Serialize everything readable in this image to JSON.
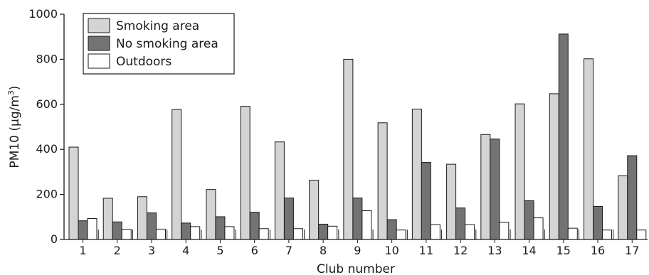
{
  "chart_data": {
    "type": "bar",
    "title": "",
    "xlabel": "Club number",
    "ylabel": "PM10 (µg/m",
    "ylabel_superscript": "3",
    "ylabel_suffix": ")",
    "ylim": [
      0,
      1000
    ],
    "yticks": [
      0,
      200,
      400,
      600,
      800,
      1000
    ],
    "grid": false,
    "legend_position": "top-left",
    "categories": [
      "1",
      "2",
      "3",
      "4",
      "5",
      "6",
      "7",
      "8",
      "9",
      "10",
      "11",
      "12",
      "13",
      "14",
      "15",
      "16",
      "17"
    ],
    "series": [
      {
        "name": "Smoking area",
        "color": "#d4d4d4",
        "values": [
          410,
          183,
          190,
          577,
          222,
          591,
          433,
          263,
          800,
          518,
          579,
          334,
          466,
          602,
          647,
          802,
          283
        ]
      },
      {
        "name": "No smoking area",
        "color": "#737373",
        "values": [
          83,
          78,
          118,
          73,
          101,
          121,
          184,
          68,
          184,
          88,
          342,
          140,
          446,
          172,
          912,
          147,
          372
        ]
      },
      {
        "name": "Outdoors",
        "color": "#ffffff",
        "values": [
          93,
          45,
          46,
          57,
          57,
          48,
          48,
          59,
          128,
          42,
          66,
          66,
          76,
          96,
          50,
          42,
          42
        ]
      }
    ]
  }
}
